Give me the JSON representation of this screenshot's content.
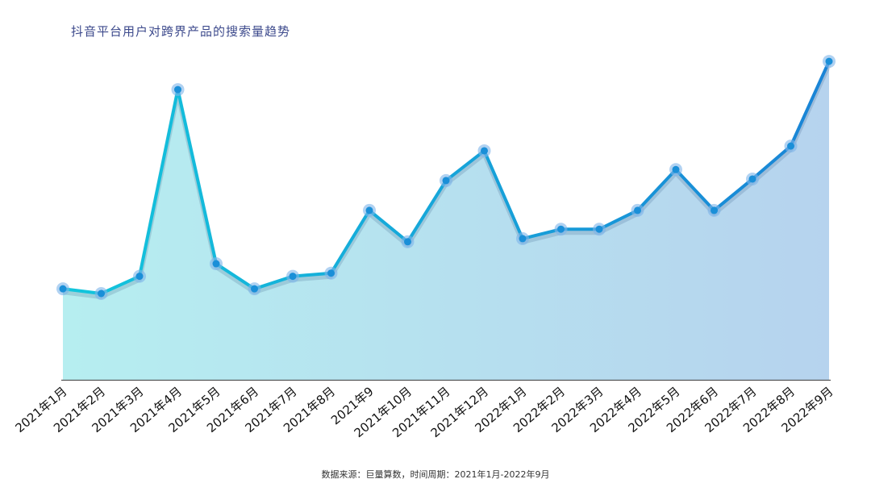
{
  "title": "抖音平台用户对跨界产品的搜索量趋势",
  "source": "数据来源：巨量算数，时间周期：2021年1月-2022年9月",
  "colors": {
    "line_start": "#12c6dc",
    "line_end": "#1a84d6",
    "marker": "#1a8fd8",
    "fill_start": "#b6eef0",
    "fill_end": "#b6d3ee",
    "axis": "#555555"
  },
  "chart_data": {
    "type": "area",
    "categories": [
      "2021年1月",
      "2021年2月",
      "2021年3月",
      "2021年4月",
      "2021年5月",
      "2021年6月",
      "2021年7月",
      "2021年8月",
      "2021年9",
      "2021年10月",
      "2021年11月",
      "2021年12月",
      "2022年1月",
      "2022年2月",
      "2022年3月",
      "2022年4月",
      "2022年5月",
      "2022年6月",
      "2022年7月",
      "2022年8月",
      "2022年9月"
    ],
    "series": [
      {
        "values": [
          29,
          27.5,
          33,
          92.5,
          37,
          29,
          33,
          34,
          54,
          44,
          63.5,
          73,
          45,
          48,
          48,
          54,
          67,
          54,
          64,
          74.5,
          101.5
        ]
      }
    ],
    "ylim": [
      0,
      110
    ],
    "yaxis_visible": false,
    "grid": false
  }
}
